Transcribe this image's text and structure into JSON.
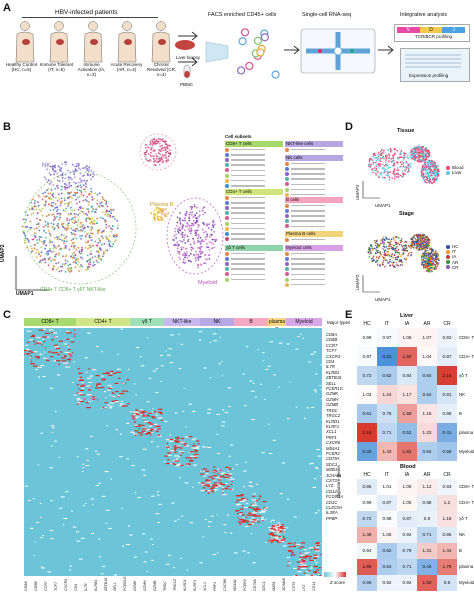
{
  "panels": {
    "A": "A",
    "B": "B",
    "C": "C",
    "D": "D",
    "E": "E"
  },
  "panelA": {
    "patients_title": "HBV-infected patients",
    "groups": [
      {
        "label": "Healthy Control (HC, n=5)"
      },
      {
        "label": "Immune Tolerant (IT, n=5)"
      },
      {
        "label": "Immune Activation (IA, n=3)"
      },
      {
        "label": "Acute Recovery (AR, n=3)"
      },
      {
        "label": "Chronic Resolved (CR, n=4)"
      }
    ],
    "liver_biopsy": "Liver biopsy",
    "pbmc": "PBMC",
    "facs_title": "FACS enriched CD45+ cells",
    "scrna_title": "Single-cell RNA-seq",
    "integrative_title": "Integrative analysis",
    "tcr_label": "TCR/BCR profiling",
    "expr_label": "Expression profiling",
    "vdj": [
      "V",
      "D",
      "J"
    ]
  },
  "panelB": {
    "umap1": "UMAP1",
    "umap2": "UMAP2",
    "cluster_labels": [
      "B",
      "NK",
      "Plasma B",
      "Myeloid",
      "CD4+ T CD8+ T γδT NKT-like"
    ],
    "legend_title": "Cell subsets",
    "legend_groups": [
      {
        "name": "CD8+ T cells",
        "color": "#a7d86b"
      },
      {
        "name": "CD4+ T cells",
        "color": "#cde57a"
      },
      {
        "name": "γδ T cells",
        "color": "#8fd3a8"
      },
      {
        "name": "NKT-like cells",
        "color": "#b7a6e0"
      },
      {
        "name": "NK cells",
        "color": "#b6a7e3"
      },
      {
        "name": "B cells",
        "color": "#f5a3bd"
      },
      {
        "name": "Plasma B cells",
        "color": "#f3d27c"
      },
      {
        "name": "Myeloid cells",
        "color": "#d6a4e6"
      }
    ]
  },
  "panelC": {
    "categories": [
      {
        "name": "CD8+ T",
        "color": "#a8d96f"
      },
      {
        "name": "CD4+ T",
        "color": "#cfe68a"
      },
      {
        "name": "γδ T",
        "color": "#9fe0b6"
      },
      {
        "name": "NKT-like",
        "color": "#c7b8ee"
      },
      {
        "name": "NK",
        "color": "#b7a8e6"
      },
      {
        "name": "B",
        "color": "#f4a8c2"
      },
      {
        "name": "plasma B",
        "color": "#f5d483"
      },
      {
        "name": "Myeloid",
        "color": "#d8a7e8"
      }
    ],
    "major_types": "Major types",
    "signature_genes": "Signature genes",
    "zscore": "Z score",
    "genes": [
      "CD8A",
      "CD8B",
      "CCR7",
      "TCF7",
      "CXCR3",
      "CD4",
      "IL7R",
      "KLRB1",
      "ZBTB16",
      "SELL",
      "FCER1G",
      "GZMK",
      "GZMH",
      "GZMB",
      "TRDC",
      "TRGC2",
      "KLRD1",
      "KLRF1",
      "XCL1",
      "PRF1",
      "CXCR6",
      "MS4A1",
      "FCER2",
      "CD79A",
      "SDC1",
      "MZB1",
      "JCHAIN",
      "CST3",
      "LYZ",
      "CD14",
      "FCGR3A",
      "CD1C",
      "CLEC9A",
      "IL3RA",
      "PPBP"
    ]
  },
  "panelD": {
    "tissue_title": "Tissue",
    "stage_title": "Stage",
    "umap1": "UMAP1",
    "umap2": "UMAP2",
    "tissue_legend": [
      {
        "name": "Blood",
        "color": "#e84a6e"
      },
      {
        "name": "Liver",
        "color": "#60c8e8"
      }
    ],
    "stage_legend": [
      {
        "name": "HC",
        "color": "#2a4fa0"
      },
      {
        "name": "IT",
        "color": "#e69a2b"
      },
      {
        "name": "IA",
        "color": "#c53b2f"
      },
      {
        "name": "AR",
        "color": "#3f8f3f"
      },
      {
        "name": "CR",
        "color": "#8f5ab0"
      }
    ]
  },
  "panelE": {
    "cols": [
      "HC",
      "IT",
      "IA",
      "AR",
      "CR"
    ],
    "liver_title": "Liver",
    "blood_title": "Blood",
    "rows": [
      "CD8+ T",
      "CD4+ T",
      "γδ T",
      "NK",
      "B",
      "plasma B",
      "Myeloid"
    ],
    "liver_values": [
      [
        "0.99",
        "0.97",
        "1.06",
        "1.07",
        "0.92"
      ],
      [
        "0.97",
        "0.21",
        "1.92",
        "1.04",
        "0.87"
      ],
      [
        "0.72",
        "0.62",
        "0.84",
        "0.64",
        "2.16"
      ],
      [
        "1.03",
        "1.24",
        "1.17",
        "0.64",
        "0.81"
      ],
      [
        "0.61",
        "0.78",
        "1.58",
        "1.16",
        "0.88"
      ],
      [
        "2.18",
        "0.71",
        "0.52",
        "1.23",
        "0.41"
      ],
      [
        "0.33",
        "1.43",
        "1.82",
        "0.64",
        "0.58"
      ]
    ],
    "blood_values": [
      [
        "0.86",
        "1.01",
        "1.06",
        "1.12",
        "0.93"
      ],
      [
        "0.99",
        "0.87",
        "1.05",
        "0.88",
        "1.2"
      ],
      [
        "0.72",
        "0.98",
        "0.87",
        "0.9",
        "1.18"
      ],
      [
        "1.48",
        "1.06",
        "0.92",
        "0.71",
        "0.86"
      ],
      [
        "0.94",
        "0.62",
        "0.79",
        "1.31",
        "1.44"
      ],
      [
        "1.98",
        "0.64",
        "0.71",
        "0.44",
        "1.79"
      ],
      [
        "0.66",
        "0.92",
        "0.92",
        "1.93",
        "0.8"
      ]
    ]
  }
}
